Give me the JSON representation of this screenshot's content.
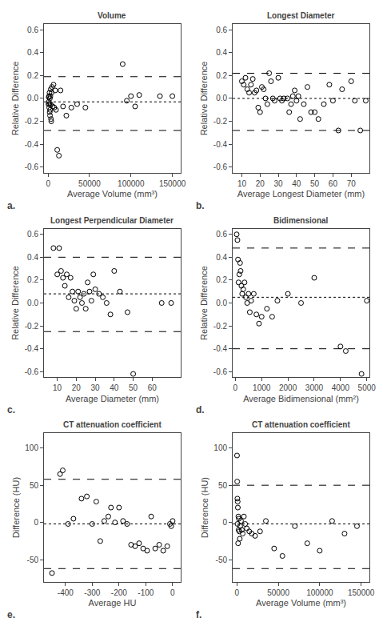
{
  "chart_data": [
    {
      "type": "scatter",
      "title": "Volume",
      "xlabel": "Average Volume (mm³)",
      "ylabel": "Relative Difference",
      "annotations": [
        "a."
      ],
      "xlim": [
        -5000,
        160000
      ],
      "ylim": [
        -0.65,
        0.65
      ],
      "xticks": [
        0,
        50000,
        100000,
        150000
      ],
      "yticks": [
        -0.6,
        -0.4,
        -0.2,
        {
          "value": 0.0,
          "label": "0.0"
        },
        0.2,
        0.4,
        0.6
      ],
      "grid": false,
      "color": "black",
      "marker": "circle-open",
      "mean_line": -0.03,
      "upper_loa": 0.19,
      "lower_loa": -0.28,
      "x": [
        500,
        700,
        900,
        1100,
        1300,
        1500,
        1700,
        1900,
        2100,
        2300,
        2500,
        2700,
        3000,
        3200,
        3500,
        3800,
        4200,
        4800,
        5500,
        6500,
        7500,
        8500,
        9500,
        11000,
        13000,
        15000,
        18000,
        22000,
        28000,
        35000,
        45000,
        90000,
        95000,
        100000,
        105000,
        110000,
        135000,
        150000
      ],
      "values": [
        -0.05,
        0.01,
        -0.03,
        0.02,
        -0.08,
        -0.05,
        0.05,
        -0.12,
        0.0,
        -0.15,
        -0.1,
        0.02,
        -0.05,
        0.08,
        -0.18,
        -0.2,
        0.05,
        0.1,
        -0.07,
        0.12,
        -0.08,
        0.07,
        -0.1,
        -0.45,
        -0.5,
        0.07,
        -0.07,
        -0.15,
        -0.08,
        -0.05,
        -0.08,
        0.3,
        -0.02,
        0.02,
        -0.07,
        0.03,
        0.02,
        0.02
      ]
    },
    {
      "type": "scatter",
      "title": "Longest Diameter",
      "xlabel": "Average Longest Diameter (mm)",
      "ylabel": "Relative Difference",
      "annotations": [
        "b."
      ],
      "xlim": [
        5,
        80
      ],
      "ylim": [
        -0.65,
        0.65
      ],
      "xticks": [
        10,
        20,
        30,
        40,
        50,
        60,
        70
      ],
      "yticks": [
        -0.6,
        -0.4,
        -0.2,
        {
          "value": 0.0,
          "label": "0.0"
        },
        0.2,
        0.4,
        0.6
      ],
      "grid": false,
      "color": "black",
      "marker": "circle-open",
      "mean_line": 0.0,
      "upper_loa": 0.22,
      "lower_loa": -0.28,
      "x": [
        10,
        11,
        12,
        13,
        14,
        15,
        16,
        17,
        18,
        19,
        20,
        21,
        22,
        23,
        24,
        25,
        26,
        27,
        28,
        30,
        31,
        32,
        33,
        35,
        36,
        37,
        38,
        39,
        40,
        41,
        42,
        44,
        46,
        48,
        50,
        52,
        55,
        58,
        60,
        63,
        65,
        70,
        72,
        75,
        78
      ],
      "values": [
        0.15,
        0.12,
        0.18,
        0.08,
        0.05,
        0.12,
        0.17,
        0.05,
        0.07,
        -0.08,
        -0.12,
        0.1,
        0.08,
        0.0,
        -0.05,
        0.22,
        0.15,
        0.0,
        -0.02,
        0.18,
        0.0,
        -0.02,
        0.0,
        0.0,
        -0.12,
        -0.05,
        0.02,
        0.07,
        -0.02,
        0.02,
        -0.18,
        -0.05,
        0.1,
        -0.12,
        -0.12,
        -0.18,
        -0.05,
        0.12,
        -0.02,
        -0.28,
        0.08,
        0.15,
        -0.02,
        -0.28,
        -0.02
      ]
    },
    {
      "type": "scatter",
      "title": "Longest Perpendicular Diameter",
      "xlabel": "Average Diameter (mm)",
      "ylabel": "Relative Difference",
      "annotations": [
        "c."
      ],
      "xlim": [
        3,
        75
      ],
      "ylim": [
        -0.65,
        0.65
      ],
      "xticks": [
        10,
        20,
        30,
        40,
        50,
        60
      ],
      "yticks": [
        -0.6,
        -0.4,
        -0.2,
        {
          "value": 0.0,
          "label": "0.0"
        },
        0.2,
        0.4,
        0.6
      ],
      "grid": false,
      "color": "black",
      "marker": "circle-open",
      "mean_line": 0.08,
      "upper_loa": 0.4,
      "lower_loa": -0.25,
      "x": [
        8,
        10,
        11,
        12,
        13,
        14,
        15,
        16,
        17,
        18,
        19,
        20,
        21,
        22,
        23,
        24,
        25,
        26,
        27,
        28,
        29,
        30,
        32,
        34,
        36,
        38,
        40,
        43,
        47,
        50,
        65,
        70
      ],
      "values": [
        0.48,
        0.25,
        0.48,
        0.28,
        0.22,
        0.15,
        0.25,
        0.05,
        0.22,
        0.1,
        0.02,
        -0.05,
        0.1,
        0.05,
        0.0,
        0.08,
        -0.05,
        0.18,
        0.1,
        0.02,
        0.25,
        0.12,
        0.08,
        0.05,
        0.0,
        -0.1,
        0.28,
        0.1,
        -0.08,
        -0.62,
        0.0,
        0.0
      ]
    },
    {
      "type": "scatter",
      "title": "Bidimensional",
      "xlabel": "Average Bidimensional (mm²)",
      "ylabel": "Relative Difference",
      "annotations": [
        "d."
      ],
      "xlim": [
        -100,
        5100
      ],
      "ylim": [
        -0.65,
        0.65
      ],
      "xticks": [
        0,
        1000,
        2000,
        3000,
        4000,
        5000
      ],
      "yticks": [
        -0.6,
        -0.4,
        -0.2,
        {
          "value": 0.0,
          "label": "0.0"
        },
        0.2,
        0.4,
        0.6
      ],
      "grid": false,
      "color": "black",
      "marker": "circle-open",
      "mean_line": 0.05,
      "upper_loa": 0.48,
      "lower_loa": -0.4,
      "x": [
        50,
        80,
        100,
        120,
        150,
        180,
        200,
        230,
        260,
        300,
        350,
        400,
        450,
        500,
        550,
        600,
        700,
        800,
        900,
        1000,
        1200,
        1400,
        1600,
        2000,
        2500,
        3000,
        4000,
        4200,
        4800,
        5000
      ],
      "values": [
        0.6,
        0.55,
        0.38,
        0.18,
        0.25,
        0.35,
        0.28,
        0.15,
        0.08,
        0.12,
        0.18,
        0.05,
        0.0,
        0.08,
        -0.08,
        0.02,
        0.08,
        -0.1,
        -0.18,
        -0.12,
        -0.05,
        -0.12,
        0.02,
        0.08,
        0.0,
        0.22,
        -0.38,
        -0.42,
        -0.62,
        0.02
      ]
    },
    {
      "type": "scatter",
      "title": "CT attenuation coefficient",
      "xlabel": "Average HU",
      "ylabel": "Difference (HU)",
      "annotations": [
        "e."
      ],
      "xlim": [
        -480,
        30
      ],
      "ylim": [
        -80,
        120
      ],
      "xticks": [
        -400,
        -300,
        -200,
        -100,
        0
      ],
      "yticks": [
        -50,
        0,
        50,
        100
      ],
      "grid": false,
      "color": "black",
      "marker": "circle-open",
      "mean_line": -2,
      "upper_loa": 58,
      "lower_loa": -62,
      "x": [
        -450,
        -420,
        -410,
        -390,
        -370,
        -340,
        -320,
        -300,
        -285,
        -270,
        -255,
        -240,
        -230,
        -215,
        -200,
        -185,
        -170,
        -155,
        -140,
        -125,
        -110,
        -95,
        -80,
        -65,
        -50,
        -35,
        -20,
        -10,
        -5,
        0
      ],
      "values": [
        -68,
        65,
        70,
        -2,
        5,
        32,
        35,
        -2,
        28,
        -25,
        2,
        8,
        20,
        0,
        20,
        2,
        -2,
        -30,
        -32,
        -28,
        -35,
        -38,
        8,
        -35,
        -30,
        -38,
        -32,
        -2,
        -5,
        2
      ]
    },
    {
      "type": "scatter",
      "title": "CT attenuation coefficient",
      "xlabel": "Average Volume (mm³)",
      "ylabel": "Difference (HU)",
      "annotations": [
        "f."
      ],
      "xlim": [
        -5000,
        160000
      ],
      "ylim": [
        -80,
        120
      ],
      "xticks": [
        0,
        50000,
        100000,
        150000
      ],
      "yticks": [
        -50,
        0,
        50,
        100
      ],
      "grid": false,
      "color": "black",
      "marker": "circle-open",
      "mean_line": -2,
      "upper_loa": 50,
      "lower_loa": -62,
      "x": [
        200,
        400,
        600,
        800,
        1000,
        1200,
        1500,
        1800,
        2100,
        2500,
        3000,
        3500,
        4000,
        5000,
        6000,
        7000,
        8500,
        10000,
        12000,
        15000,
        18000,
        22000,
        28000,
        35000,
        45000,
        55000,
        70000,
        85000,
        100000,
        115000,
        130000,
        145000
      ],
      "values": [
        90,
        55,
        32,
        -2,
        28,
        20,
        -28,
        8,
        -10,
        5,
        -12,
        -22,
        -5,
        2,
        -10,
        -15,
        8,
        -2,
        -8,
        -12,
        -15,
        -18,
        -12,
        2,
        -35,
        -45,
        -5,
        -28,
        -38,
        2,
        -15,
        -5
      ]
    }
  ]
}
